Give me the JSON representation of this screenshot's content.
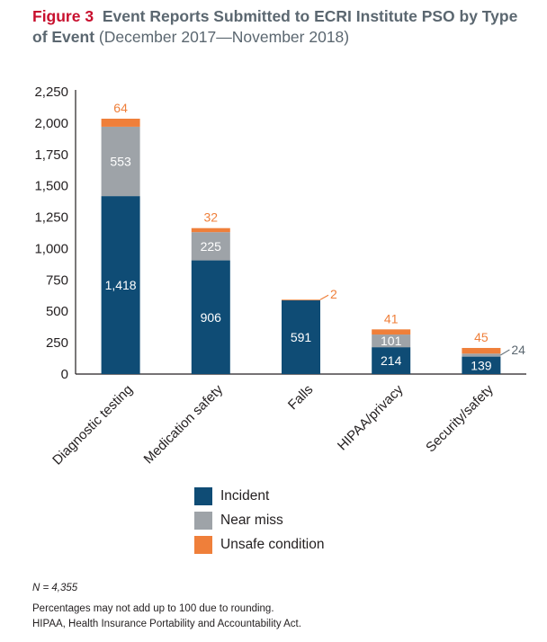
{
  "figure": {
    "number": "Figure 3",
    "title": "Event Reports Submitted to ECRI Institute PSO by Type of Event",
    "period": "(December 2017—November 2018)"
  },
  "colors": {
    "incident": "#0f4c75",
    "near_miss": "#9ea3a8",
    "unsafe": "#ef7f3a",
    "axis": "#231f20",
    "label_orange": "#ef7f3a",
    "label_gray": "#5b6770"
  },
  "chart_data": {
    "type": "bar",
    "stacked": true,
    "categories": [
      "Diagnostic testing",
      "Medication safety",
      "Falls",
      "HIPAA/privacy",
      "Security/safety"
    ],
    "series": [
      {
        "name": "Incident",
        "values": [
          1418,
          906,
          591,
          214,
          139
        ]
      },
      {
        "name": "Near miss",
        "values": [
          553,
          225,
          0,
          101,
          24
        ]
      },
      {
        "name": "Unsafe condition",
        "values": [
          64,
          32,
          2,
          41,
          45
        ]
      }
    ],
    "data_labels": {
      "incident": [
        "1,418",
        "906",
        "591",
        "214",
        "139"
      ],
      "near_miss": [
        "553",
        "225",
        "",
        "101",
        "24"
      ],
      "unsafe": [
        "64",
        "32",
        "2",
        "41",
        "45"
      ]
    },
    "yticks": [
      "0",
      "250",
      "500",
      "750",
      "1,000",
      "1,250",
      "1,500",
      "1,750",
      "2,000",
      "2,250"
    ],
    "ylim": [
      0,
      2250
    ],
    "legend_position": "bottom"
  },
  "legend": {
    "items": [
      {
        "label": "Incident",
        "color": "#0f4c75"
      },
      {
        "label": "Near miss",
        "color": "#9ea3a8"
      },
      {
        "label": "Unsafe condition",
        "color": "#ef7f3a"
      }
    ]
  },
  "notes": {
    "n_total": "N = 4,355",
    "line1": "Percentages may not add up to 100 due to rounding.",
    "line2": "HIPAA, Health Insurance Portability and Accountability Act."
  }
}
